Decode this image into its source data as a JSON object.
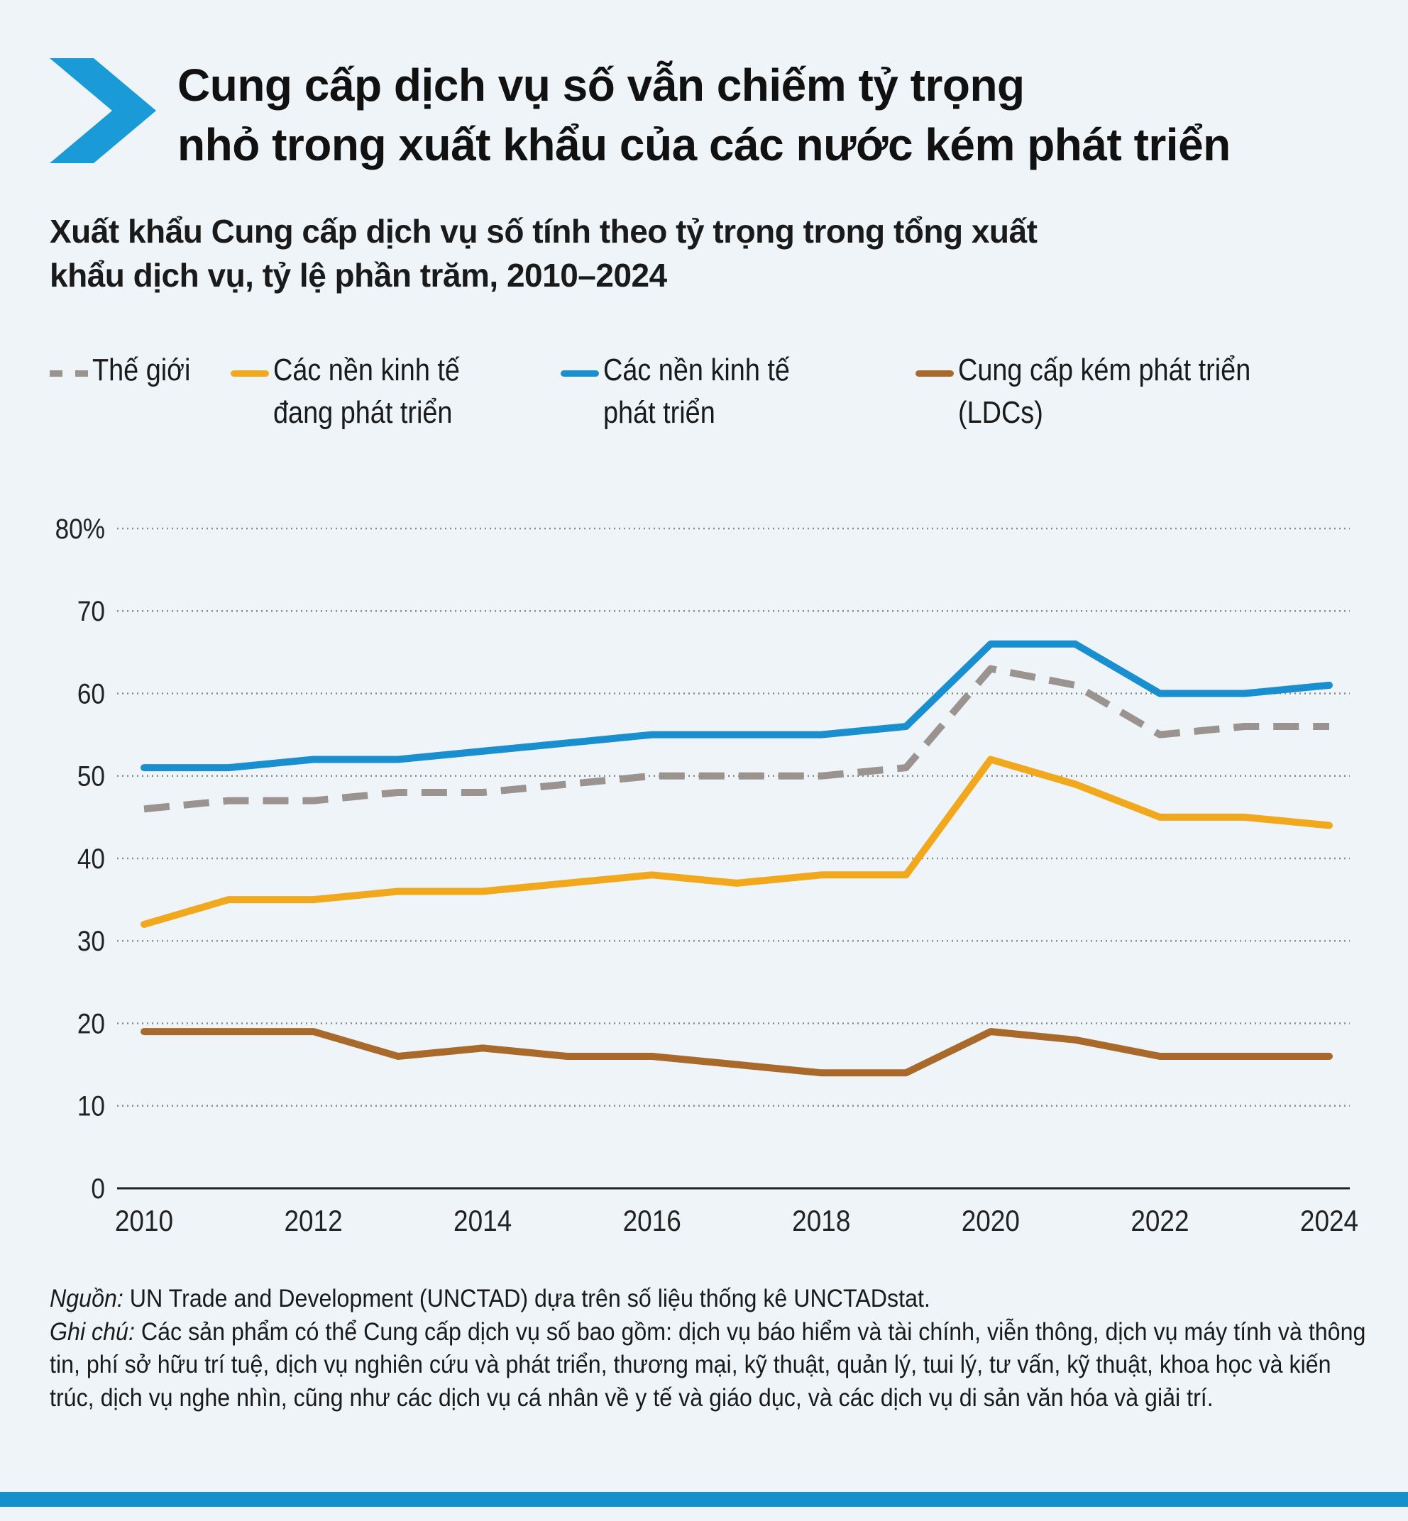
{
  "header": {
    "title_lines": [
      "Cung cấp dịch vụ số vẫn chiếm tỷ trọng",
      "nhỏ trong xuất khẩu của các nước kém phát triển"
    ],
    "subtitle_lines": [
      "Xuất khẩu Cung cấp dịch vụ số tính theo tỷ trọng trong tổng xuất",
      "khẩu dịch vụ, tỷ lệ phần trăm, 2010–2024"
    ],
    "accent_color": "#1a9ad6"
  },
  "legend": [
    {
      "label": "Thế giới",
      "color": "#9a9390",
      "style": "dashed"
    },
    {
      "label": "Các nền kinh tế\nđang phát triển",
      "color": "#f2a81d",
      "style": "solid"
    },
    {
      "label": "Các nền kinh tế\nphát triển",
      "color": "#1a8fcf",
      "style": "solid"
    },
    {
      "label": "Cung cấp kém phát triển\n(LDCs)",
      "color": "#a8692a",
      "style": "solid"
    }
  ],
  "chart_data": {
    "type": "line",
    "title": "Xuất khẩu Cung cấp dịch vụ số tính theo tỷ trọng trong tổng xuất khẩu dịch vụ, tỷ lệ phần trăm, 2010–2024",
    "xlabel": "",
    "ylabel": "",
    "x": [
      2010,
      2011,
      2012,
      2013,
      2014,
      2015,
      2016,
      2017,
      2018,
      2019,
      2020,
      2021,
      2022,
      2023,
      2024
    ],
    "xticks": [
      "2010",
      "2012",
      "2014",
      "2016",
      "2018",
      "2020",
      "2022",
      "2024"
    ],
    "xtick_values": [
      2010,
      2012,
      2014,
      2016,
      2018,
      2020,
      2022,
      2024
    ],
    "yticks": [
      "0",
      "10",
      "20",
      "30",
      "40",
      "50",
      "60",
      "70",
      "80%"
    ],
    "ytick_values": [
      0,
      10,
      20,
      30,
      40,
      50,
      60,
      70,
      80
    ],
    "ylim": [
      0,
      80
    ],
    "grid": "horizontal dotted",
    "legend_position": "top",
    "series": [
      {
        "name": "Thế giới",
        "color": "#9a9390",
        "dashed": true,
        "values": [
          46,
          47,
          47,
          48,
          48,
          49,
          50,
          50,
          50,
          51,
          63,
          61,
          55,
          56,
          56
        ]
      },
      {
        "name": "Các nền kinh tế đang phát triển",
        "color": "#f2a81d",
        "dashed": false,
        "values": [
          32,
          35,
          35,
          36,
          36,
          37,
          38,
          37,
          38,
          38,
          52,
          49,
          45,
          45,
          44
        ]
      },
      {
        "name": "Các nền kinh tế phát triển",
        "color": "#1a8fcf",
        "dashed": false,
        "values": [
          51,
          51,
          52,
          52,
          53,
          54,
          55,
          55,
          55,
          56,
          66,
          66,
          60,
          60,
          61
        ]
      },
      {
        "name": "Cung cấp kém phát triển (LDCs)",
        "color": "#a8692a",
        "dashed": false,
        "values": [
          19,
          19,
          19,
          16,
          17,
          16,
          16,
          15,
          14,
          14,
          19,
          18,
          16,
          16,
          16
        ]
      }
    ]
  },
  "footer": {
    "source_label": "Nguồn:",
    "source_text": " UN Trade and Development (UNCTAD) dựa trên số liệu thống kê UNCTADstat.",
    "note_label": "Ghi chú:",
    "note_text": " Các sản phẩm có thể Cung cấp dịch vụ số bao gồm: dịch vụ báo hiểm và tài chính, viễn thông, dịch vụ máy tính và thông tin, phí sở hữu trí tuệ, dịch vụ nghiên cứu và phát triển, thương mại, kỹ thuật, quản lý, tɯi lý, tư vấn, kỹ thuật, khoa học và kiến trúc, dịch vụ nghe nhìn, cũng như các dịch vụ cá nhân về y tế và giáo dục, và các dịch vụ di sản văn hóa và giải trí.",
    "bar_color": "#1590cf"
  }
}
